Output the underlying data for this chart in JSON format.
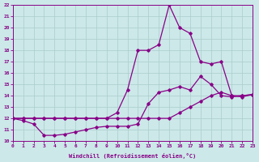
{
  "xlabel": "Windchill (Refroidissement éolien,°C)",
  "xlim": [
    0,
    23
  ],
  "ylim": [
    10,
    22
  ],
  "yticks": [
    10,
    11,
    12,
    13,
    14,
    15,
    16,
    17,
    18,
    19,
    20,
    21,
    22
  ],
  "xticks": [
    0,
    1,
    2,
    3,
    4,
    5,
    6,
    7,
    8,
    9,
    10,
    11,
    12,
    13,
    14,
    15,
    16,
    17,
    18,
    19,
    20,
    21,
    22,
    23
  ],
  "bg_color": "#cce8e8",
  "line_color": "#880088",
  "line1_x": [
    0,
    1,
    2,
    3,
    4,
    5,
    6,
    7,
    8,
    9,
    10,
    11,
    12,
    13,
    14,
    15,
    16,
    17,
    18,
    19,
    20,
    21,
    22,
    23
  ],
  "line1_y": [
    12.0,
    12.0,
    12.0,
    12.0,
    12.0,
    12.0,
    12.0,
    12.0,
    12.0,
    12.0,
    12.0,
    12.0,
    12.0,
    12.0,
    12.0,
    12.0,
    12.5,
    13.0,
    13.5,
    14.0,
    14.3,
    14.0,
    14.0,
    14.1
  ],
  "line2_x": [
    0,
    1,
    2,
    3,
    4,
    5,
    6,
    7,
    8,
    9,
    10,
    11,
    12,
    13,
    14,
    15,
    16,
    17,
    18,
    19,
    20,
    21,
    22,
    23
  ],
  "line2_y": [
    12.0,
    11.8,
    11.5,
    10.5,
    10.5,
    10.6,
    10.8,
    11.0,
    11.2,
    11.3,
    11.3,
    11.3,
    11.5,
    13.3,
    14.3,
    14.5,
    14.8,
    14.5,
    15.7,
    15.0,
    14.0,
    13.9,
    14.0,
    14.1
  ],
  "line3_x": [
    0,
    1,
    2,
    3,
    4,
    5,
    6,
    7,
    8,
    9,
    10,
    11,
    12,
    13,
    14,
    15,
    16,
    17,
    18,
    19,
    20,
    21,
    22,
    23
  ],
  "line3_y": [
    12.0,
    12.0,
    12.0,
    12.0,
    12.0,
    12.0,
    12.0,
    12.0,
    12.0,
    12.0,
    12.5,
    14.5,
    18.0,
    18.0,
    18.5,
    22.0,
    20.0,
    19.5,
    17.0,
    16.8,
    17.0,
    14.0,
    13.9,
    14.1
  ]
}
